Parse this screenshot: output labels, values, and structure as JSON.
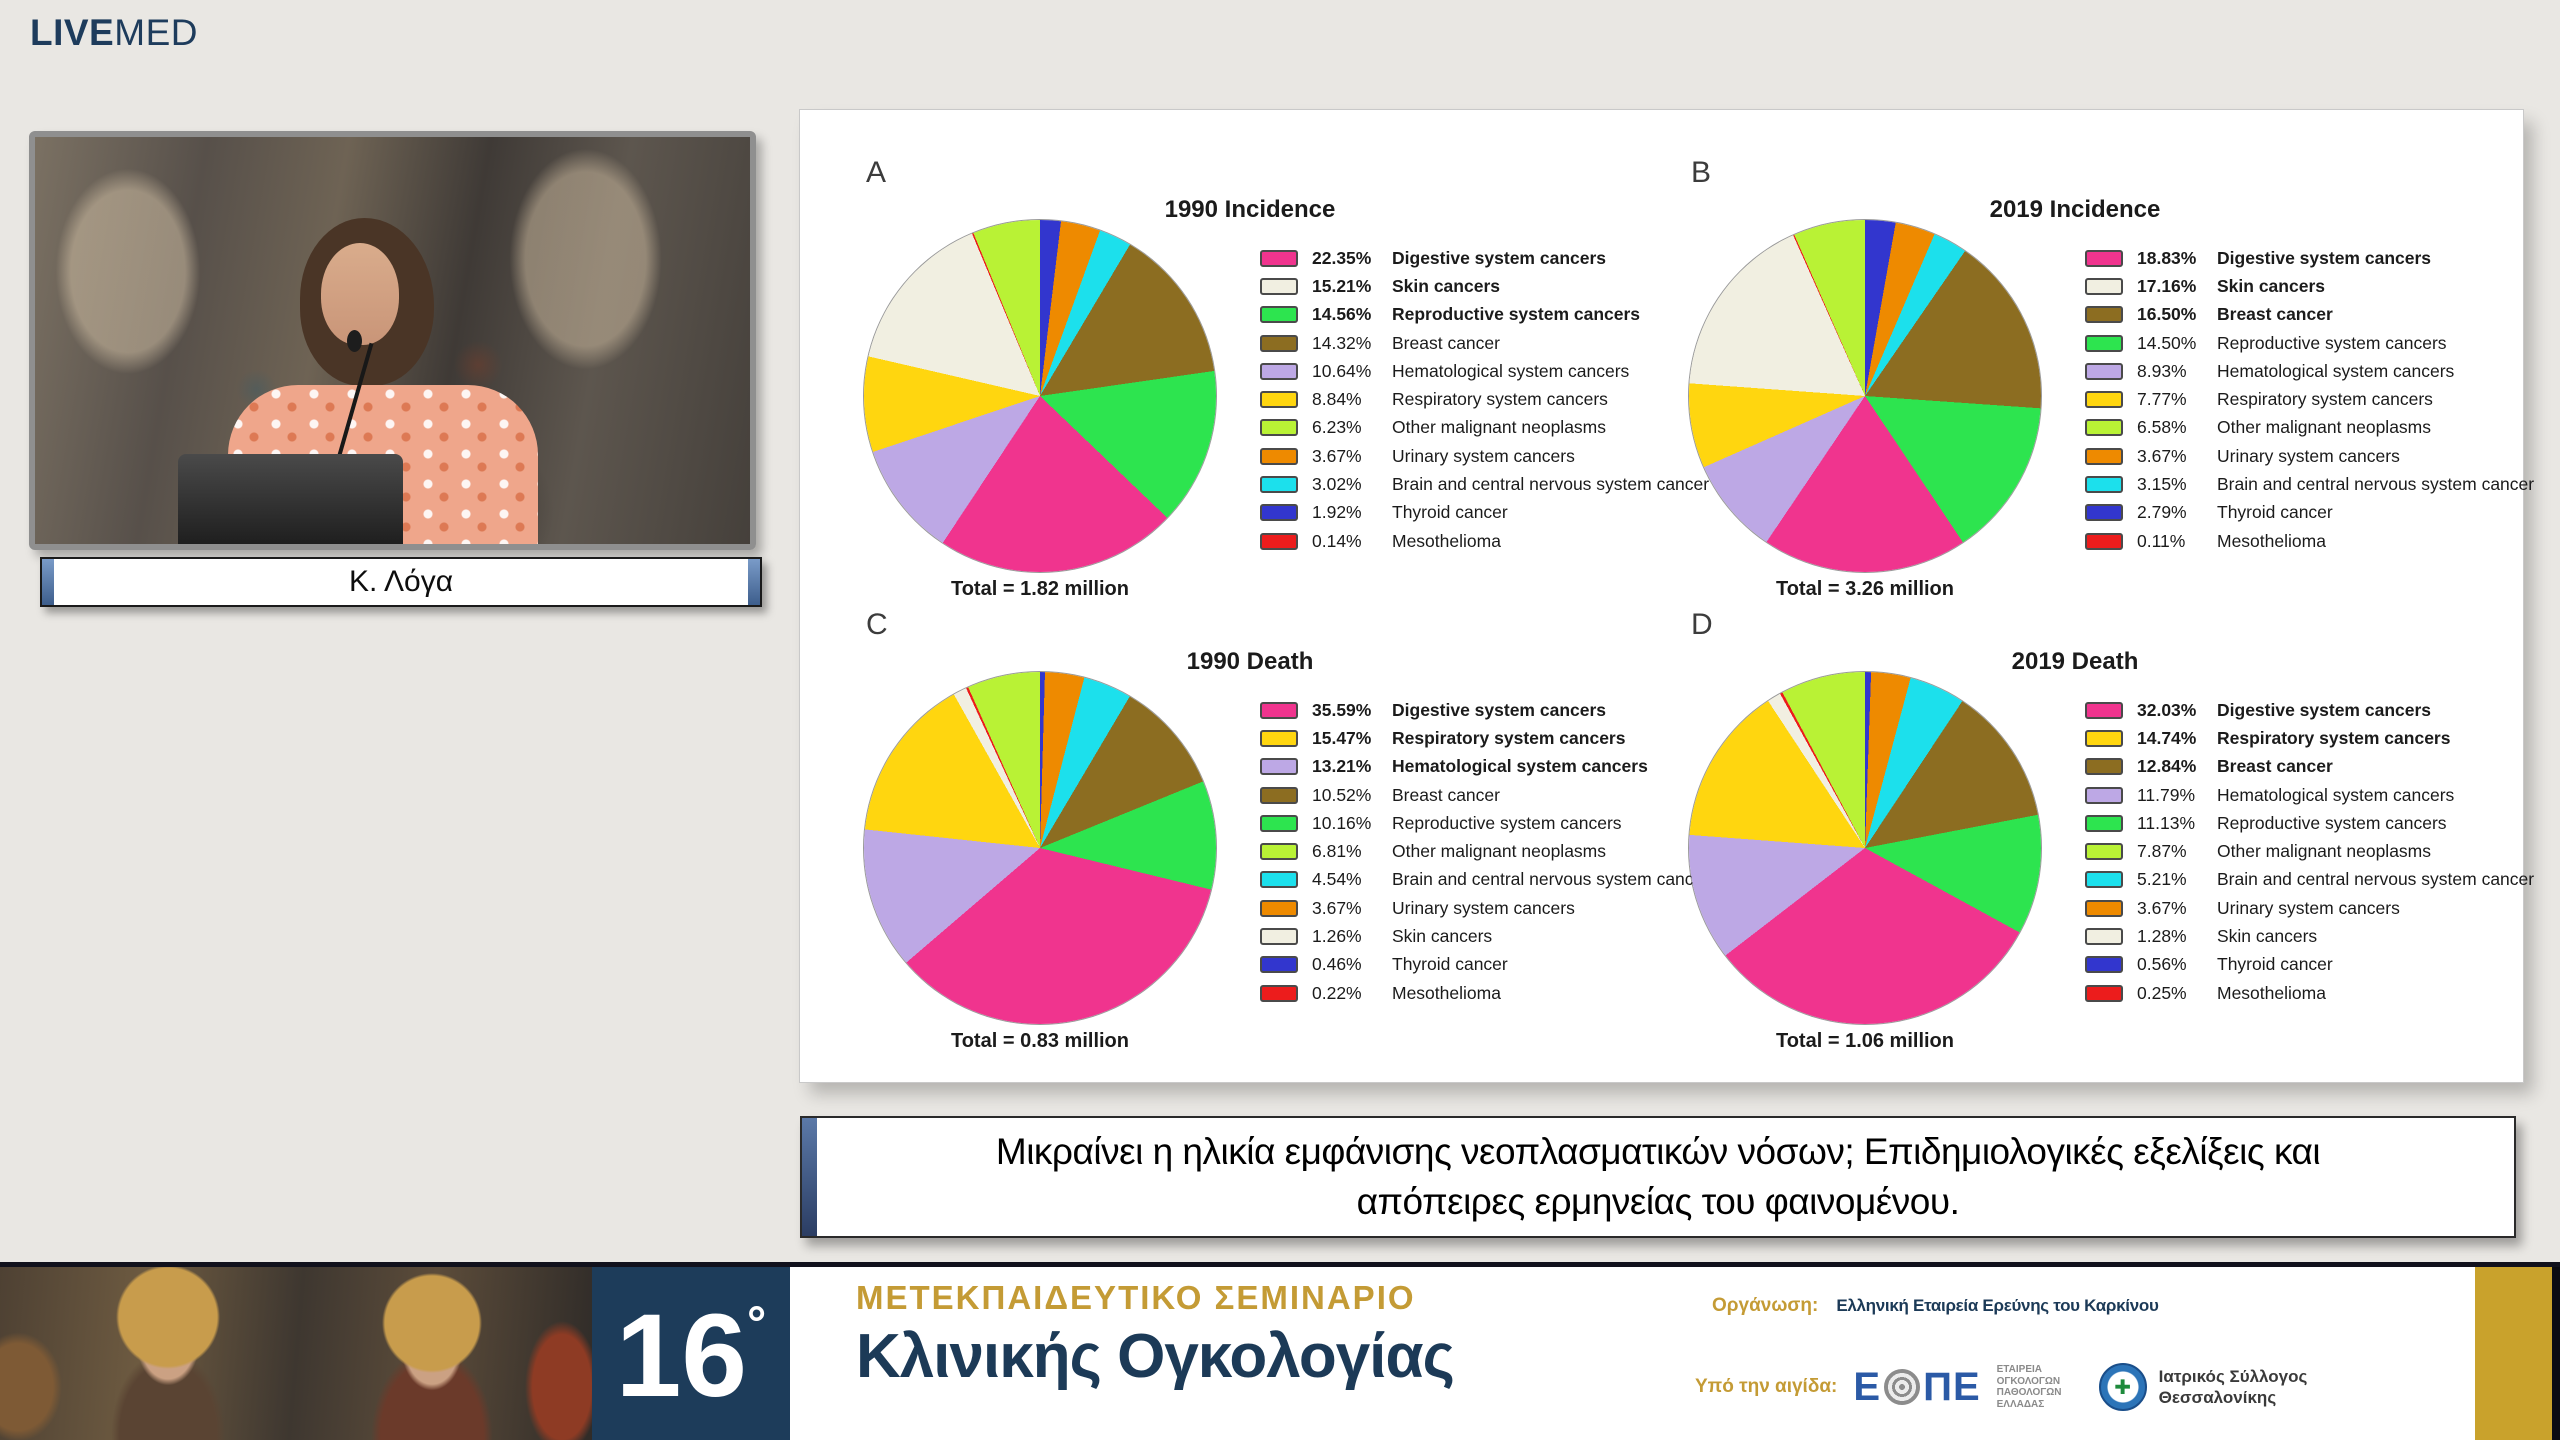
{
  "header": {
    "brand_bold": "LIVE",
    "brand_light": "MED"
  },
  "video": {
    "speaker_name": "Κ. Λόγα"
  },
  "slice_order": [
    "Thyroid cancer",
    "Urinary system cancers",
    "Brain and central nervous system cancer",
    "Breast cancer",
    "Reproductive system cancers",
    "Digestive system cancers",
    "Hematological system cancers",
    "Respiratory system cancers",
    "Skin cancers",
    "Mesothelioma",
    "Other malignant neoplasms"
  ],
  "chart_data": [
    {
      "panel": "A",
      "type": "pie",
      "title": "1990 Incidence",
      "total": "Total = 1.82 million",
      "legend_position": "right",
      "entries": [
        {
          "pct": "22.35%",
          "value": 22.35,
          "label": "Digestive system cancers",
          "color": "#F0348E",
          "bold": true
        },
        {
          "pct": "15.21%",
          "value": 15.21,
          "label": "Skin cancers",
          "color": "#F1EFE1",
          "bold": true
        },
        {
          "pct": "14.56%",
          "value": 14.56,
          "label": "Reproductive system cancers",
          "color": "#2DE44F",
          "bold": true
        },
        {
          "pct": "14.32%",
          "value": 14.32,
          "label": "Breast cancer",
          "color": "#8C6D21",
          "bold": false
        },
        {
          "pct": "10.64%",
          "value": 10.64,
          "label": "Hematological system cancers",
          "color": "#BDA8E5",
          "bold": false
        },
        {
          "pct": "8.84%",
          "value": 8.84,
          "label": "Respiratory system cancers",
          "color": "#FFD60F",
          "bold": false
        },
        {
          "pct": "6.23%",
          "value": 6.23,
          "label": "Other malignant neoplasms",
          "color": "#B9F235",
          "bold": false
        },
        {
          "pct": "3.67%",
          "value": 3.67,
          "label": "Urinary system cancers",
          "color": "#EE8A00",
          "bold": false
        },
        {
          "pct": "3.02%",
          "value": 3.02,
          "label": "Brain and central nervous system cancer",
          "color": "#1CE0EC",
          "bold": false
        },
        {
          "pct": "1.92%",
          "value": 1.92,
          "label": "Thyroid cancer",
          "color": "#3236CE",
          "bold": false
        },
        {
          "pct": "0.14%",
          "value": 0.14,
          "label": "Mesothelioma",
          "color": "#EC1C1C",
          "bold": false
        }
      ]
    },
    {
      "panel": "B",
      "type": "pie",
      "title": "2019 Incidence",
      "total": "Total = 3.26 million",
      "legend_position": "right",
      "entries": [
        {
          "pct": "18.83%",
          "value": 18.83,
          "label": "Digestive system cancers",
          "color": "#F0348E",
          "bold": true
        },
        {
          "pct": "17.16%",
          "value": 17.16,
          "label": "Skin cancers",
          "color": "#F1EFE1",
          "bold": true
        },
        {
          "pct": "16.50%",
          "value": 16.5,
          "label": "Breast cancer",
          "color": "#8C6D21",
          "bold": true
        },
        {
          "pct": "14.50%",
          "value": 14.5,
          "label": "Reproductive system cancers",
          "color": "#2DE44F",
          "bold": false
        },
        {
          "pct": "8.93%",
          "value": 8.93,
          "label": "Hematological system cancers",
          "color": "#BDA8E5",
          "bold": false
        },
        {
          "pct": "7.77%",
          "value": 7.77,
          "label": "Respiratory system cancers",
          "color": "#FFD60F",
          "bold": false
        },
        {
          "pct": "6.58%",
          "value": 6.58,
          "label": "Other malignant neoplasms",
          "color": "#B9F235",
          "bold": false
        },
        {
          "pct": "3.67%",
          "value": 3.67,
          "label": "Urinary system cancers",
          "color": "#EE8A00",
          "bold": false
        },
        {
          "pct": "3.15%",
          "value": 3.15,
          "label": "Brain and central nervous system cancer",
          "color": "#1CE0EC",
          "bold": false
        },
        {
          "pct": "2.79%",
          "value": 2.79,
          "label": "Thyroid cancer",
          "color": "#3236CE",
          "bold": false
        },
        {
          "pct": "0.11%",
          "value": 0.11,
          "label": "Mesothelioma",
          "color": "#EC1C1C",
          "bold": false
        }
      ]
    },
    {
      "panel": "C",
      "type": "pie",
      "title": "1990 Death",
      "total": "Total = 0.83 million",
      "legend_position": "right",
      "entries": [
        {
          "pct": "35.59%",
          "value": 35.59,
          "label": "Digestive system cancers",
          "color": "#F0348E",
          "bold": true
        },
        {
          "pct": "15.47%",
          "value": 15.47,
          "label": "Respiratory system cancers",
          "color": "#FFD60F",
          "bold": true
        },
        {
          "pct": "13.21%",
          "value": 13.21,
          "label": "Hematological system cancers",
          "color": "#BDA8E5",
          "bold": true
        },
        {
          "pct": "10.52%",
          "value": 10.52,
          "label": "Breast cancer",
          "color": "#8C6D21",
          "bold": false
        },
        {
          "pct": "10.16%",
          "value": 10.16,
          "label": "Reproductive system cancers",
          "color": "#2DE44F",
          "bold": false
        },
        {
          "pct": "6.81%",
          "value": 6.81,
          "label": "Other malignant neoplasms",
          "color": "#B9F235",
          "bold": false
        },
        {
          "pct": "4.54%",
          "value": 4.54,
          "label": "Brain and central nervous system cancer",
          "color": "#1CE0EC",
          "bold": false
        },
        {
          "pct": "3.67%",
          "value": 3.67,
          "label": "Urinary system cancers",
          "color": "#EE8A00",
          "bold": false
        },
        {
          "pct": "1.26%",
          "value": 1.26,
          "label": "Skin cancers",
          "color": "#F1EFE1",
          "bold": false
        },
        {
          "pct": "0.46%",
          "value": 0.46,
          "label": "Thyroid cancer",
          "color": "#3236CE",
          "bold": false
        },
        {
          "pct": "0.22%",
          "value": 0.22,
          "label": "Mesothelioma",
          "color": "#EC1C1C",
          "bold": false
        }
      ]
    },
    {
      "panel": "D",
      "type": "pie",
      "title": "2019 Death",
      "total": "Total = 1.06 million",
      "legend_position": "right",
      "entries": [
        {
          "pct": "32.03%",
          "value": 32.03,
          "label": "Digestive system cancers",
          "color": "#F0348E",
          "bold": true
        },
        {
          "pct": "14.74%",
          "value": 14.74,
          "label": "Respiratory system cancers",
          "color": "#FFD60F",
          "bold": true
        },
        {
          "pct": "12.84%",
          "value": 12.84,
          "label": "Breast cancer",
          "color": "#8C6D21",
          "bold": true
        },
        {
          "pct": "11.79%",
          "value": 11.79,
          "label": "Hematological system cancers",
          "color": "#BDA8E5",
          "bold": false
        },
        {
          "pct": "11.13%",
          "value": 11.13,
          "label": "Reproductive system cancers",
          "color": "#2DE44F",
          "bold": false
        },
        {
          "pct": "7.87%",
          "value": 7.87,
          "label": "Other malignant neoplasms",
          "color": "#B9F235",
          "bold": false
        },
        {
          "pct": "5.21%",
          "value": 5.21,
          "label": "Brain and central nervous system cancer",
          "color": "#1CE0EC",
          "bold": false
        },
        {
          "pct": "3.67%",
          "value": 3.67,
          "label": "Urinary system cancers",
          "color": "#EE8A00",
          "bold": false
        },
        {
          "pct": "1.28%",
          "value": 1.28,
          "label": "Skin cancers",
          "color": "#F1EFE1",
          "bold": false
        },
        {
          "pct": "0.56%",
          "value": 0.56,
          "label": "Thyroid cancer",
          "color": "#3236CE",
          "bold": false
        },
        {
          "pct": "0.25%",
          "value": 0.25,
          "label": "Mesothelioma",
          "color": "#EC1C1C",
          "bold": false
        }
      ]
    }
  ],
  "caption": {
    "line1": "Μικραίνει η ηλικία εμφάνισης νεοπλασματικών νόσων; Επιδημιολογικές εξελίξεις και",
    "line2": "απόπειρες ερμηνείας του φαινομένου."
  },
  "footer": {
    "edition": "16",
    "edition_degree": "°",
    "seminar_kicker": "ΜΕΤΕΚΠΑΙΔΕΥΤΙΚΟ ΣΕΜΙΝΑΡΙΟ",
    "seminar_title": "Κλινικής Ογκολογίας",
    "organizer_label": "Οργάνωση:",
    "organizer_value": "Ελληνική Εταιρεία Ερεύνης του Καρκίνου",
    "auspices_label": "Υπό την αιγίδα:",
    "eope_left": "Ε",
    "eope_right": "ΠΕ",
    "eope_full": "ΕΤΑΙΡΕΙΑ ΟΓΚΟΛΟΓΩΝ ΠΑΘΟΛΟΓΩΝ ΕΛΛΑΔΑΣ",
    "medical_assoc_line1": "Ιατρικός Σύλλογος",
    "medical_assoc_line2": "Θεσσαλονίκης",
    "isth_cross": "✚"
  },
  "colors": {
    "brand_navy": "#1C3A57",
    "accent_gold": "#C49B35"
  }
}
